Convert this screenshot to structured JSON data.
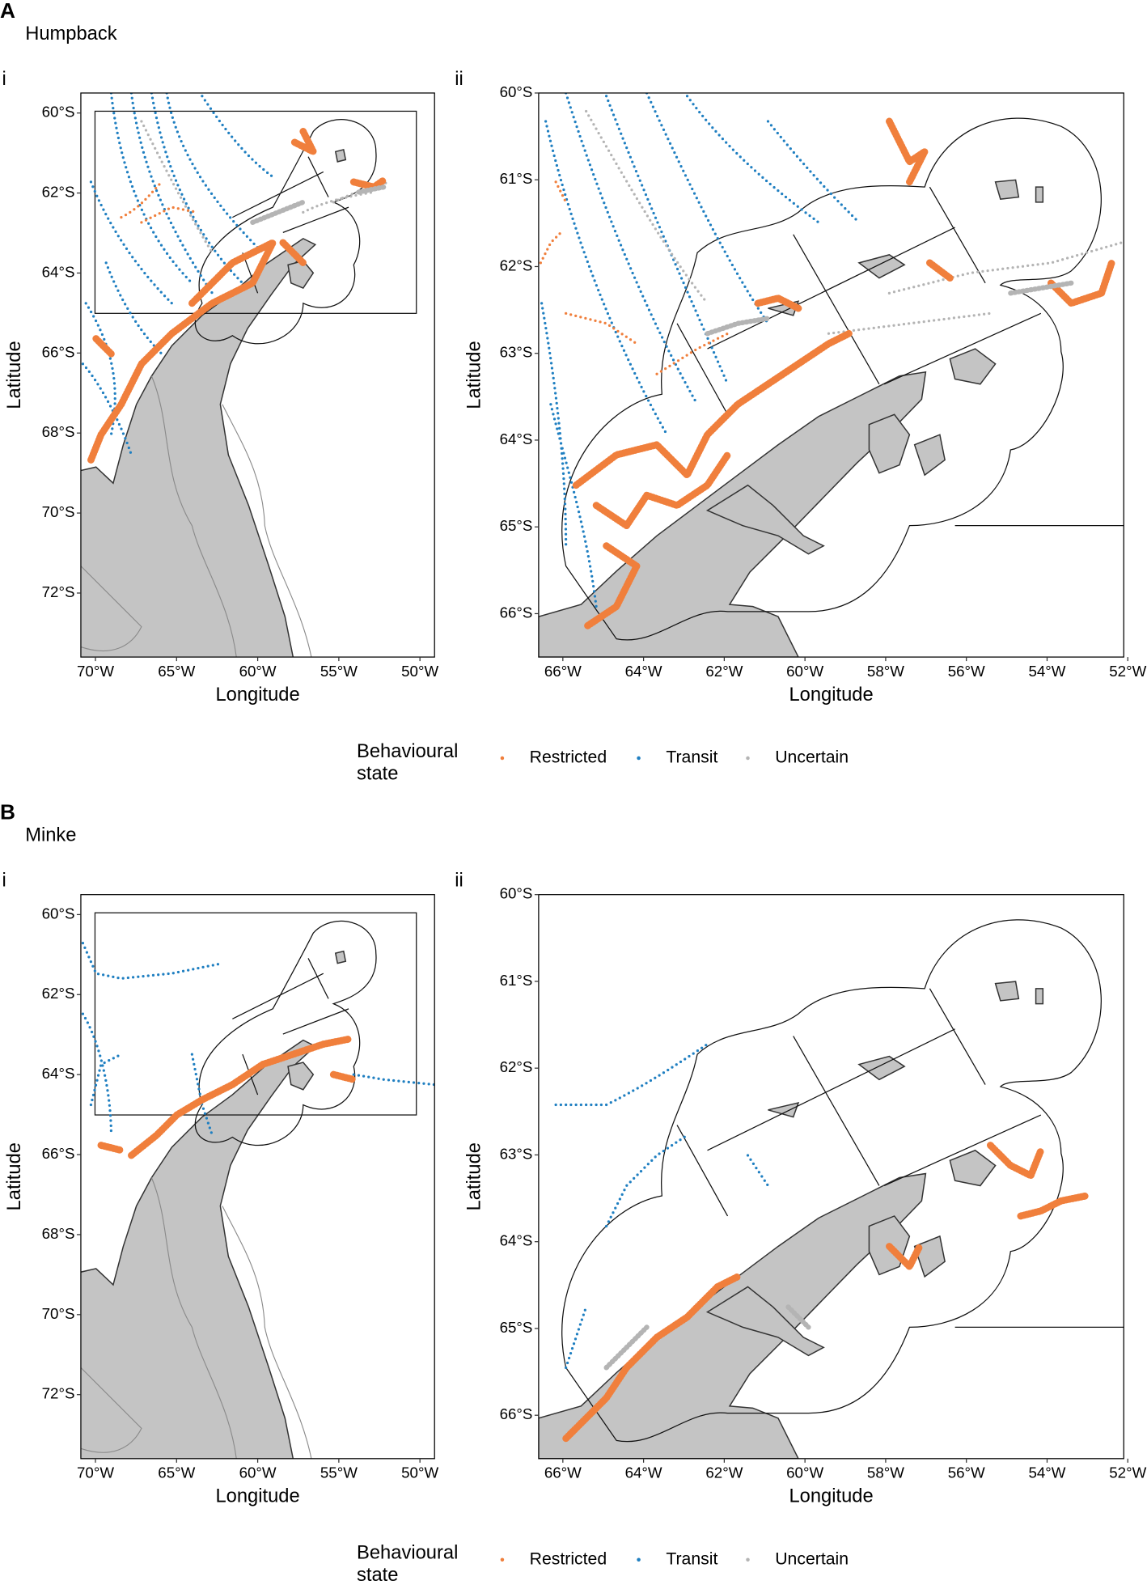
{
  "panels": [
    {
      "label": "A",
      "species": "Humpback",
      "maps": [
        {
          "label": "i",
          "xlabel": "Longitude",
          "ylabel": "Latitude",
          "xlim": [
            -70.9,
            -49.1
          ],
          "ylim": [
            -73.6,
            -59.5
          ],
          "xticks": [
            {
              "value": -70,
              "label": "70°W"
            },
            {
              "value": -65,
              "label": "65°W"
            },
            {
              "value": -60,
              "label": "60°W"
            },
            {
              "value": -55,
              "label": "55°W"
            },
            {
              "value": -50,
              "label": "50°W"
            }
          ],
          "yticks": [
            {
              "value": -60,
              "label": "60°S"
            },
            {
              "value": -62,
              "label": "62°S"
            },
            {
              "value": -64,
              "label": "64°S"
            },
            {
              "value": -66,
              "label": "66°S"
            },
            {
              "value": -68,
              "label": "68°S"
            },
            {
              "value": -70,
              "label": "70°S"
            },
            {
              "value": -72,
              "label": "72°S"
            }
          ]
        },
        {
          "label": "ii",
          "xlabel": "Longitude",
          "ylabel": "Latitude",
          "xlim": [
            -66.6,
            -52.1
          ],
          "ylim": [
            -66.5,
            -60.0
          ],
          "xticks": [
            {
              "value": -66,
              "label": "66°W"
            },
            {
              "value": -64,
              "label": "64°W"
            },
            {
              "value": -62,
              "label": "62°W"
            },
            {
              "value": -60,
              "label": "60°W"
            },
            {
              "value": -58,
              "label": "58°W"
            },
            {
              "value": -56,
              "label": "56°W"
            },
            {
              "value": -54,
              "label": "54°W"
            },
            {
              "value": -52,
              "label": "52°W"
            }
          ],
          "yticks": [
            {
              "value": -60,
              "label": "60°S"
            },
            {
              "value": -61,
              "label": "61°S"
            },
            {
              "value": -62,
              "label": "62°S"
            },
            {
              "value": -63,
              "label": "63°S"
            },
            {
              "value": -64,
              "label": "64°S"
            },
            {
              "value": -65,
              "label": "65°S"
            },
            {
              "value": -66,
              "label": "66°S"
            }
          ]
        }
      ],
      "legend": {
        "title": "Behavioural state",
        "entries": [
          {
            "name": "Restricted",
            "color": "#f07f3c"
          },
          {
            "name": "Transit",
            "color": "#1f7fc1"
          },
          {
            "name": "Uncertain",
            "color": "#b4b4b4"
          }
        ]
      }
    },
    {
      "label": "B",
      "species": "Minke",
      "maps": [
        {
          "label": "i",
          "xlabel": "Longitude",
          "ylabel": "Latitude",
          "xlim": [
            -70.9,
            -49.1
          ],
          "ylim": [
            -73.6,
            -59.5
          ],
          "xticks": [
            {
              "value": -70,
              "label": "70°W"
            },
            {
              "value": -65,
              "label": "65°W"
            },
            {
              "value": -60,
              "label": "60°W"
            },
            {
              "value": -55,
              "label": "55°W"
            },
            {
              "value": -50,
              "label": "50°W"
            }
          ],
          "yticks": [
            {
              "value": -60,
              "label": "60°S"
            },
            {
              "value": -62,
              "label": "62°S"
            },
            {
              "value": -64,
              "label": "64°S"
            },
            {
              "value": -66,
              "label": "66°S"
            },
            {
              "value": -68,
              "label": "68°S"
            },
            {
              "value": -70,
              "label": "70°S"
            },
            {
              "value": -72,
              "label": "72°S"
            }
          ]
        },
        {
          "label": "ii",
          "xlabel": "Longitude",
          "ylabel": "Latitude",
          "xlim": [
            -66.6,
            -52.1
          ],
          "ylim": [
            -66.5,
            -60.0
          ],
          "xticks": [
            {
              "value": -66,
              "label": "66°W"
            },
            {
              "value": -64,
              "label": "64°W"
            },
            {
              "value": -62,
              "label": "62°W"
            },
            {
              "value": -60,
              "label": "60°W"
            },
            {
              "value": -58,
              "label": "58°W"
            },
            {
              "value": -56,
              "label": "56°W"
            },
            {
              "value": -54,
              "label": "54°W"
            },
            {
              "value": -52,
              "label": "52°W"
            }
          ],
          "yticks": [
            {
              "value": -60,
              "label": "60°S"
            },
            {
              "value": -61,
              "label": "61°S"
            },
            {
              "value": -62,
              "label": "62°S"
            },
            {
              "value": -63,
              "label": "63°S"
            },
            {
              "value": -64,
              "label": "64°S"
            },
            {
              "value": -65,
              "label": "65°S"
            },
            {
              "value": -66,
              "label": "66°S"
            }
          ]
        }
      ],
      "legend": {
        "title": "Behavioural state",
        "entries": [
          {
            "name": "Restricted",
            "color": "#f07f3c"
          },
          {
            "name": "Transit",
            "color": "#1f7fc1"
          },
          {
            "name": "Uncertain",
            "color": "#b4b4b4"
          }
        ]
      }
    }
  ]
}
